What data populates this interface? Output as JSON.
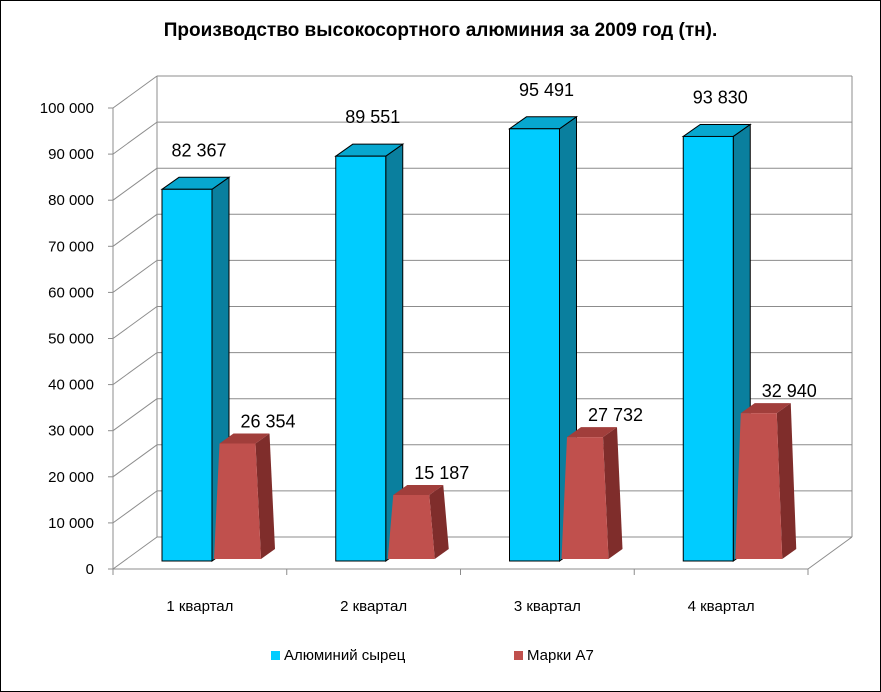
{
  "chart_data": {
    "type": "bar",
    "title": "Производство высокосортного алюминия за 2009 год (тн).",
    "categories": [
      "1 квартал",
      "2 квартал",
      "3 квартал",
      "4 квартал"
    ],
    "series": [
      {
        "name": "Алюминий сырец",
        "values": [
          82367,
          89551,
          95491,
          93830
        ],
        "labels": [
          "82 367",
          "89 551",
          "95 491",
          "93 830"
        ],
        "color": "#00ccff",
        "side_color": "#0a7f9e",
        "top_color": "#07a7cf",
        "shape": "box"
      },
      {
        "name": "Марки А7",
        "values": [
          26354,
          15187,
          27732,
          32940
        ],
        "labels": [
          "26 354",
          "15 187",
          "27 732",
          "32 940"
        ],
        "color": "#c0504d",
        "side_color": "#7f2d2b",
        "top_color": "#a13e3b",
        "shape": "pyramid-frustum"
      }
    ],
    "y_ticks": [
      0,
      10000,
      20000,
      30000,
      40000,
      50000,
      60000,
      70000,
      80000,
      90000,
      100000
    ],
    "y_tick_labels": [
      "0",
      "10 000",
      "20 000",
      "30 000",
      "40 000",
      "50 000",
      "60 000",
      "70 000",
      "80 000",
      "90 000",
      "100 000"
    ],
    "ylim": [
      0,
      100000
    ],
    "grid": true,
    "legend_position": "bottom",
    "xlabel": "",
    "ylabel": ""
  }
}
